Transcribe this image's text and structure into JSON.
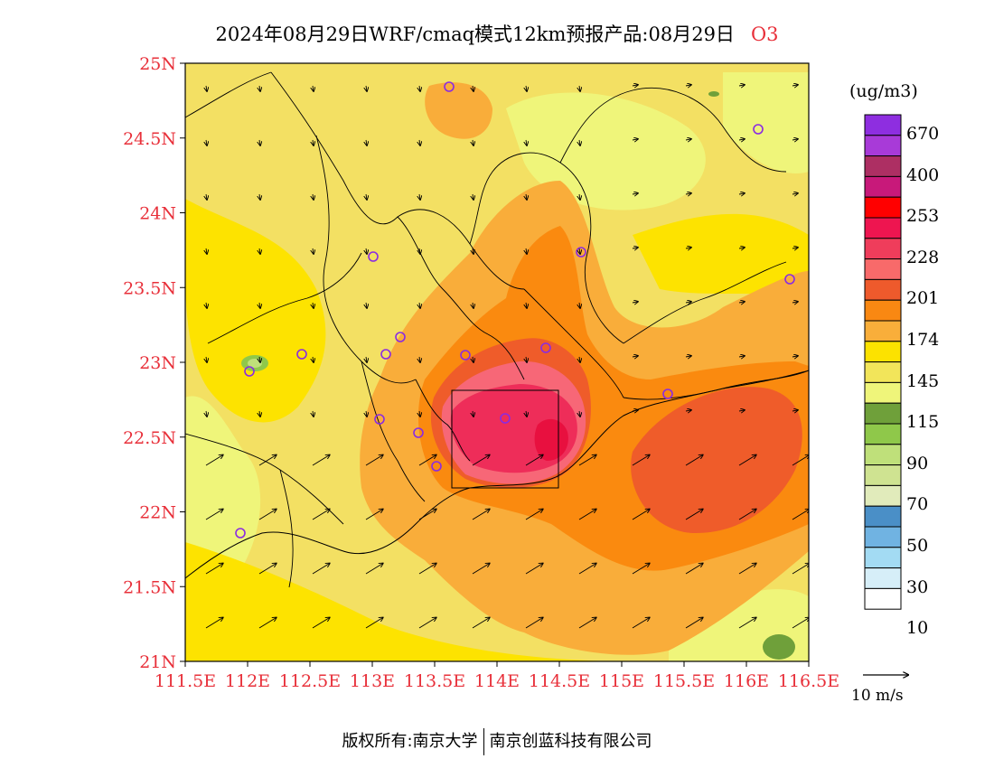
{
  "header": {
    "title": "2024年08月29日WRF/cmaq模式12km预报产品:08月29日",
    "species": "O3"
  },
  "map": {
    "lat_ticks": [
      "25N",
      "24.5N",
      "24N",
      "23.5N",
      "23N",
      "22.5N",
      "22N",
      "21.5N",
      "21N"
    ],
    "lon_ticks": [
      "111.5E",
      "112E",
      "112.5E",
      "113E",
      "113.5E",
      "114E",
      "114.5E",
      "115E",
      "115.5E",
      "116E",
      "116.5E"
    ],
    "extent": {
      "lon": [
        111.5,
        116.5
      ],
      "lat": [
        21,
        25
      ]
    },
    "colors": {
      "base": "#f3e063",
      "high_yellow": "#fde300",
      "orange_light": "#f9ad3a",
      "orange": "#fa8a0f",
      "orange_red": "#ef5c2a",
      "pink": "#f76777",
      "red_pink": "#ee2d59",
      "deep_red": "#e8103f"
    }
  },
  "legend": {
    "unit": "(ug/m3)",
    "colors": [
      "#8e2ee0",
      "#a83ad8",
      "#ad2f63",
      "#c8197a",
      "#ff0000",
      "#ee1550",
      "#ef3d5b",
      "#f86a6a",
      "#ee5a2c",
      "#f98812",
      "#f9ae3a",
      "#fce200",
      "#f2e55a",
      "#eff57a",
      "#6fa03a",
      "#8fc84a",
      "#bfe07a",
      "#cfe391",
      "#e1ebbb",
      "#4a8fc7",
      "#70b3e2",
      "#a3dbf3",
      "#d6eef8",
      "#ffffff"
    ],
    "labels": [
      "670",
      "400",
      "253",
      "228",
      "201",
      "174",
      "145",
      "115",
      "90",
      "70",
      "50",
      "30",
      "10"
    ]
  },
  "wind_legend": {
    "label": "10 m/s"
  },
  "footer": {
    "copyright": "版权所有:南京大学",
    "company": "南京创蓝科技有限公司"
  }
}
